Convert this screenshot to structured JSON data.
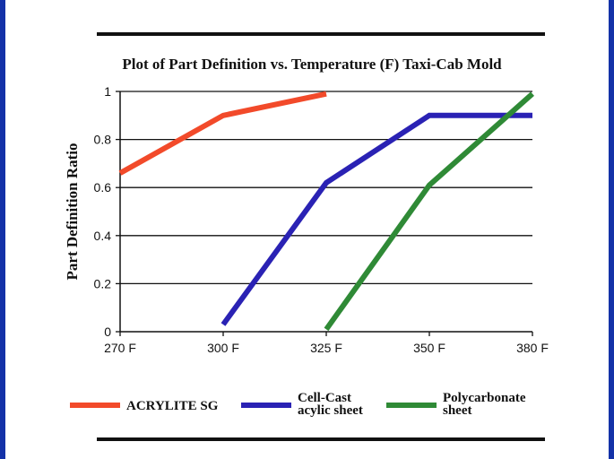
{
  "chart_data": {
    "type": "line",
    "title": "Plot of Part Definition vs. Temperature (F) Taxi-Cab Mold",
    "xlabel": "",
    "ylabel": "Part Definition Ratio",
    "categories": [
      "270 F",
      "300 F",
      "325 F",
      "350 F",
      "380 F"
    ],
    "ylim": [
      0,
      1
    ],
    "yticks": [
      "0",
      "0.2",
      "0.4",
      "0.6",
      "0.8",
      "1"
    ],
    "grid": "horizontal",
    "legend_position": "bottom",
    "series": [
      {
        "name": "ACRYLITE SG",
        "name_lines": [
          "ACRYLITE SG"
        ],
        "color": "#f24a2a",
        "points": [
          {
            "x": "270 F",
            "y": 0.66
          },
          {
            "x": "300 F",
            "y": 0.9
          },
          {
            "x": "325 F",
            "y": 0.99
          }
        ]
      },
      {
        "name": "Cell-Cast acylic sheet",
        "name_lines": [
          "Cell-Cast",
          "acylic sheet"
        ],
        "color": "#2a22b4",
        "points": [
          {
            "x": "300 F",
            "y": 0.03
          },
          {
            "x": "325 F",
            "y": 0.62
          },
          {
            "x": "350 F",
            "y": 0.9
          },
          {
            "x": "380 F",
            "y": 0.9
          }
        ]
      },
      {
        "name": "Polycarbonate sheet",
        "name_lines": [
          "Polycarbonate",
          "sheet"
        ],
        "color": "#2f8a36",
        "points": [
          {
            "x": "325 F",
            "y": 0.01
          },
          {
            "x": "350 F",
            "y": 0.61
          },
          {
            "x": "380 F",
            "y": 0.99
          }
        ]
      }
    ]
  }
}
